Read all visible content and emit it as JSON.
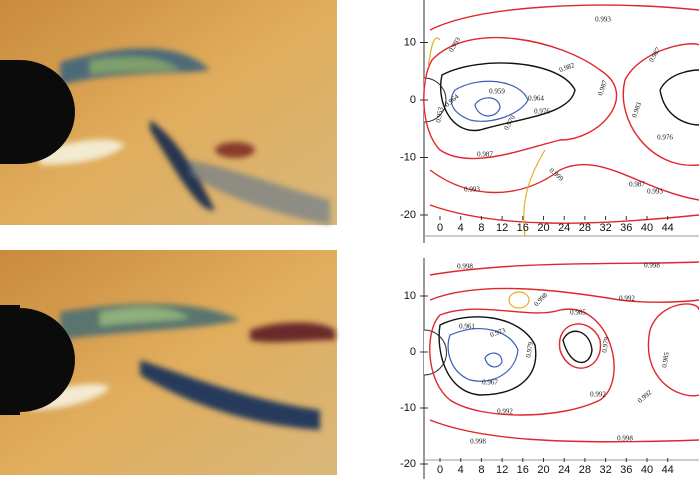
{
  "panels": [
    {
      "xticks": [
        0,
        4,
        8,
        12,
        16,
        20,
        24,
        28,
        32,
        36,
        40,
        44
      ],
      "yticks": [
        10,
        0,
        -10,
        -20
      ],
      "contour_labels": [
        "0.993",
        "0.993",
        "0.982",
        "0.987",
        "0.964",
        "0.953",
        "0.959",
        "0.964",
        "0.976",
        "0.970",
        "0.987",
        "0.983",
        "0.976",
        "0.987",
        "0.999",
        "0.987",
        "0.993",
        "0.993"
      ]
    },
    {
      "xticks": [
        0,
        4,
        8,
        12,
        16,
        20,
        24,
        28,
        32,
        36,
        40,
        44
      ],
      "yticks": [
        10,
        0,
        -10,
        -20
      ],
      "contour_labels": [
        "0.998",
        "0.998",
        "0.998",
        "0.992",
        "0.985",
        "0.961",
        "0.973",
        "0.979",
        "0.967",
        "0.979",
        "0.992",
        "0.992",
        "0.985",
        "0.992",
        "0.998",
        "0.998"
      ]
    }
  ]
}
